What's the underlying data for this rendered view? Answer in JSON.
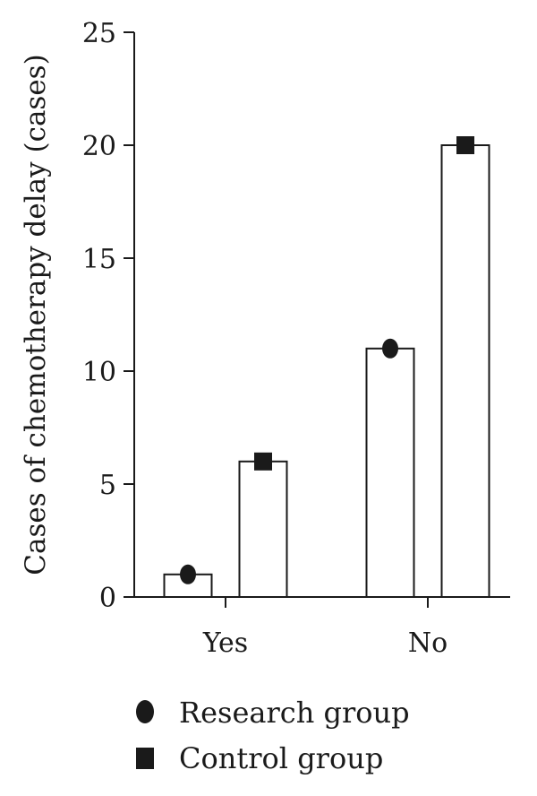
{
  "chart_data": {
    "type": "bar",
    "categories": [
      "Yes",
      "No"
    ],
    "series": [
      {
        "name": "Research group",
        "values": [
          1,
          11
        ],
        "marker": "circle"
      },
      {
        "name": "Control group",
        "values": [
          6,
          20
        ],
        "marker": "square"
      }
    ],
    "ylabel": "Cases of chemotherapy delay (cases)",
    "xlabel": "",
    "ylim": [
      0,
      25
    ],
    "yticks": [
      0,
      5,
      10,
      15,
      20,
      25
    ],
    "grid": false,
    "legend_position": "bottom-left",
    "colors": {
      "bar_fill": "#ffffff",
      "bar_stroke": "#1a1a1a",
      "marker": "#1a1a1a",
      "axis": "#1a1a1a"
    }
  }
}
